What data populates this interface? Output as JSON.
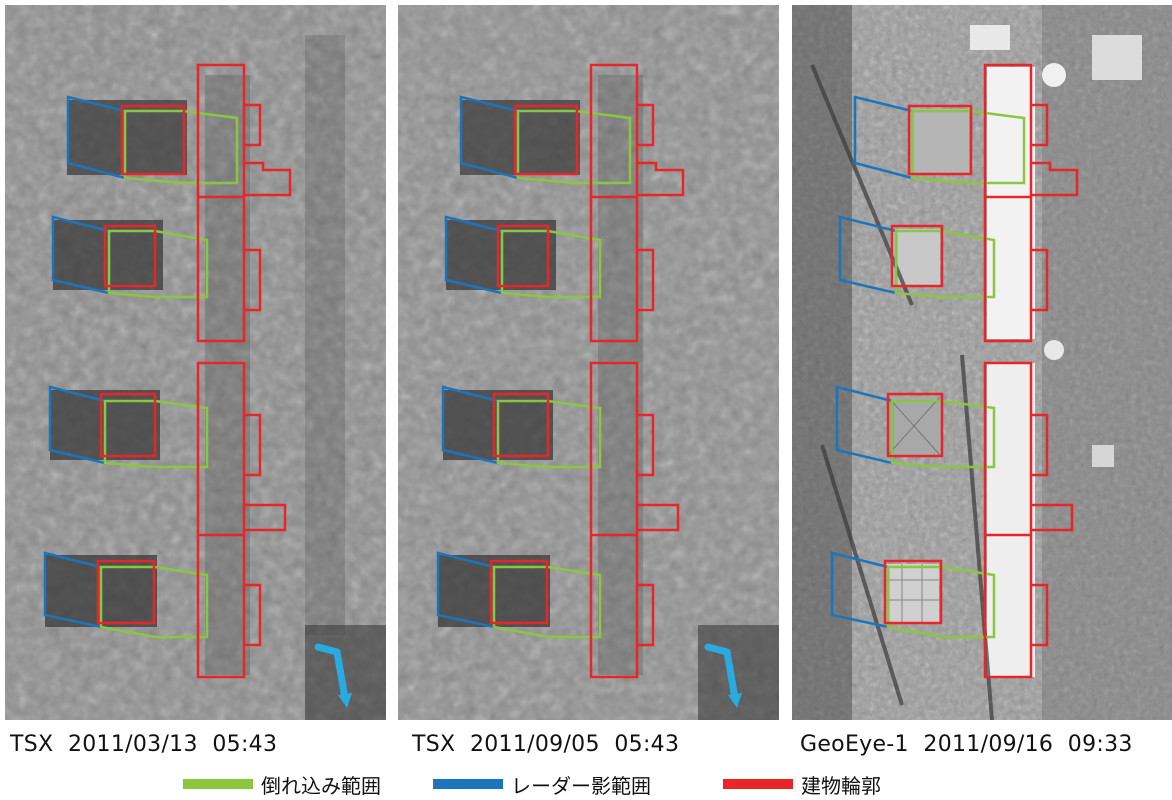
{
  "captions": {
    "left": "TSX  2011/03/13  05:43",
    "middle": "TSX  2011/09/05  05:43",
    "right": "GeoEye-1  2011/09/16  09:33"
  },
  "legend": [
    {
      "label": "倒れ込み範囲",
      "color": "#8cc63f"
    },
    {
      "label": "レーダー影範囲",
      "color": "#1b75bc"
    },
    {
      "label": "建物輪郭",
      "color": "#e8262a"
    }
  ],
  "colors": {
    "layover": "#8cc63f",
    "shadow": "#1b75bc",
    "outline": "#e8262a",
    "arrow": "#29abe2"
  },
  "icons": [
    "sar-direction-arrow-icon"
  ]
}
